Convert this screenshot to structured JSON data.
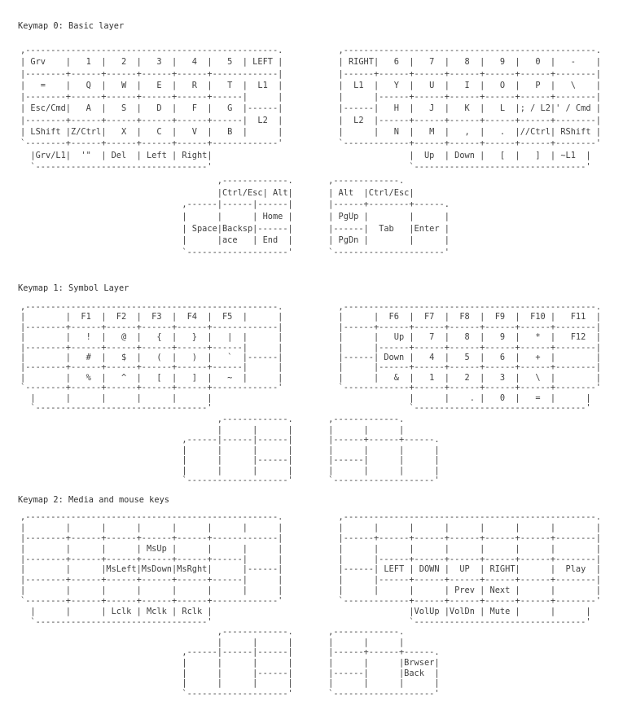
{
  "layers": [
    {
      "title": "Keymap 0: Basic layer",
      "main_lines": [
        ",--------------------------------------------------.           ,--------------------------------------------------.",
        "| Grv    |   1  |   2  |   3  |   4  |   5  | LEFT |           | RIGHT|   6  |   7  |   8  |   9  |   0  |   -    |",
        "|--------+------+------+------+------+-------------|           |------+------+------+------+------+------+--------|",
        "|   =    |   Q  |   W  |   E  |   R  |   T  |  L1  |           |  L1  |   Y  |   U  |   I  |   O  |   P  |   \\    |",
        "|--------+------+------+------+------+------|      |           |      |------+------+------+------+------+--------|",
        "| Esc/Cmd|   A  |   S  |   D  |   F  |   G  |------|           |------|   H  |   J  |   K  |   L  |; / L2|' / Cmd |",
        "|--------+------+------+------+------+------|  L2  |           |  L2  |------+------+------+------+------+--------|",
        "| LShift |Z/Ctrl|   X  |   C  |   V  |   B  |      |           |      |   N  |   M  |   ,  |   .  |//Ctrl| RShift |",
        "`--------+------+------+------+------+-------------'           `-------------+------+------+------+------+--------'",
        "  |Grv/L1|  '\"  | Del  | Left | Right|                                       |  Up  | Down |   [  |   ]  | ~L1  |",
        "  `----------------------------------'                                       `----------------------------------'"
      ],
      "thumb_lines": [
        "                                       ,-------------.       ,-------------.",
        "                                       |Ctrl/Esc| Alt|       | Alt  |Ctrl/Esc|",
        "                                ,------|------|------|       |------+--------+------.",
        "                                |      |      | Home |       | PgUp |        |      |",
        "                                | Space|Backsp|------|       |------|  Tab   |Enter |",
        "                                |      |ace   | End  |       | PgDn |        |      |",
        "                                `--------------------'       `----------------------'"
      ]
    },
    {
      "title": "Keymap 1: Symbol Layer",
      "main_lines": [
        ",--------------------------------------------------.           ,--------------------------------------------------.",
        "|        |  F1  |  F2  |  F3  |  F4  |  F5  |      |           |      |  F6  |  F7  |  F8  |  F9  |  F10 |   F11  |",
        "|--------+------+------+------+------+-------------|           |------+------+------+------+------+------+--------|",
        "|        |   !  |   @  |   {  |   }  |   |  |      |           |      |   Up |   7  |   8  |   9  |   *  |   F12  |",
        "|--------+------+------+------+------+------|      |           |      |------+------+------+------+------+--------|",
        "|        |   #  |   $  |   (  |   )  |   `  |------|           |------| Down |   4  |   5  |   6  |   +  |        |",
        "|--------+------+------+------+------+------|      |           |      |------+------+------+------+------+--------|",
        "|        |   %  |   ^  |   [  |   ]  |   ~  |      |           |      |   &  |   1  |   2  |   3  |   \\  |        |",
        "`--------+------+------+------+------+-------------'           `-------------+------+------+------+------+--------'",
        "  |      |      |      |      |      |                                       |      |    . |   0  |   =  |      |",
        "  `----------------------------------'                                       `----------------------------------'"
      ],
      "thumb_lines": [
        "                                       ,-------------.       ,-------------.",
        "                                       |      |      |       |      |      |",
        "                                ,------|------|------|       |------+------+------.",
        "                                |      |      |      |       |      |      |      |",
        "                                |      |      |------|       |------|      |      |",
        "                                |      |      |      |       |      |      |      |",
        "                                `--------------------'       `--------------------'"
      ]
    },
    {
      "title": "Keymap 2: Media and mouse keys",
      "main_lines": [
        ",--------------------------------------------------.           ,--------------------------------------------------.",
        "|        |      |      |      |      |      |      |           |      |      |      |      |      |      |        |",
        "|--------+------+------+------+------+-------------|           |------+------+------+------+------+------+--------|",
        "|        |      |      | MsUp |      |      |      |           |      |      |      |      |      |      |        |",
        "|--------+------+------+------+------+------|      |           |      |------+------+------+------+------+--------|",
        "|        |      |MsLeft|MsDown|MsRght|      |------|           |------| LEFT | DOWN |  UP  | RIGHT|      |  Play  |",
        "|--------+------+------+------+------+------|      |           |      |------+------+------+------+------+--------|",
        "|        |      |      |      |      |      |      |           |      |      |      | Prev | Next |      |        |",
        "`--------+------+------+------+------+-------------'           `-------------+------+------+------+------+--------'",
        "  |      |      | Lclk | Mclk | Rclk |                                       |VolUp |VolDn | Mute |      |      |",
        "  `----------------------------------'                                       `----------------------------------'"
      ],
      "thumb_lines": [
        "                                       ,-------------.       ,-------------.",
        "                                       |      |      |       |      |      |",
        "                                ,------|------|------|       |------+------+------.",
        "                                |      |      |      |       |      |      |Brwser|",
        "                                |      |      |------|       |------|      |Back  |",
        "                                |      |      |      |       |      |      |      |",
        "                                `--------------------'       `--------------------'"
      ]
    }
  ]
}
